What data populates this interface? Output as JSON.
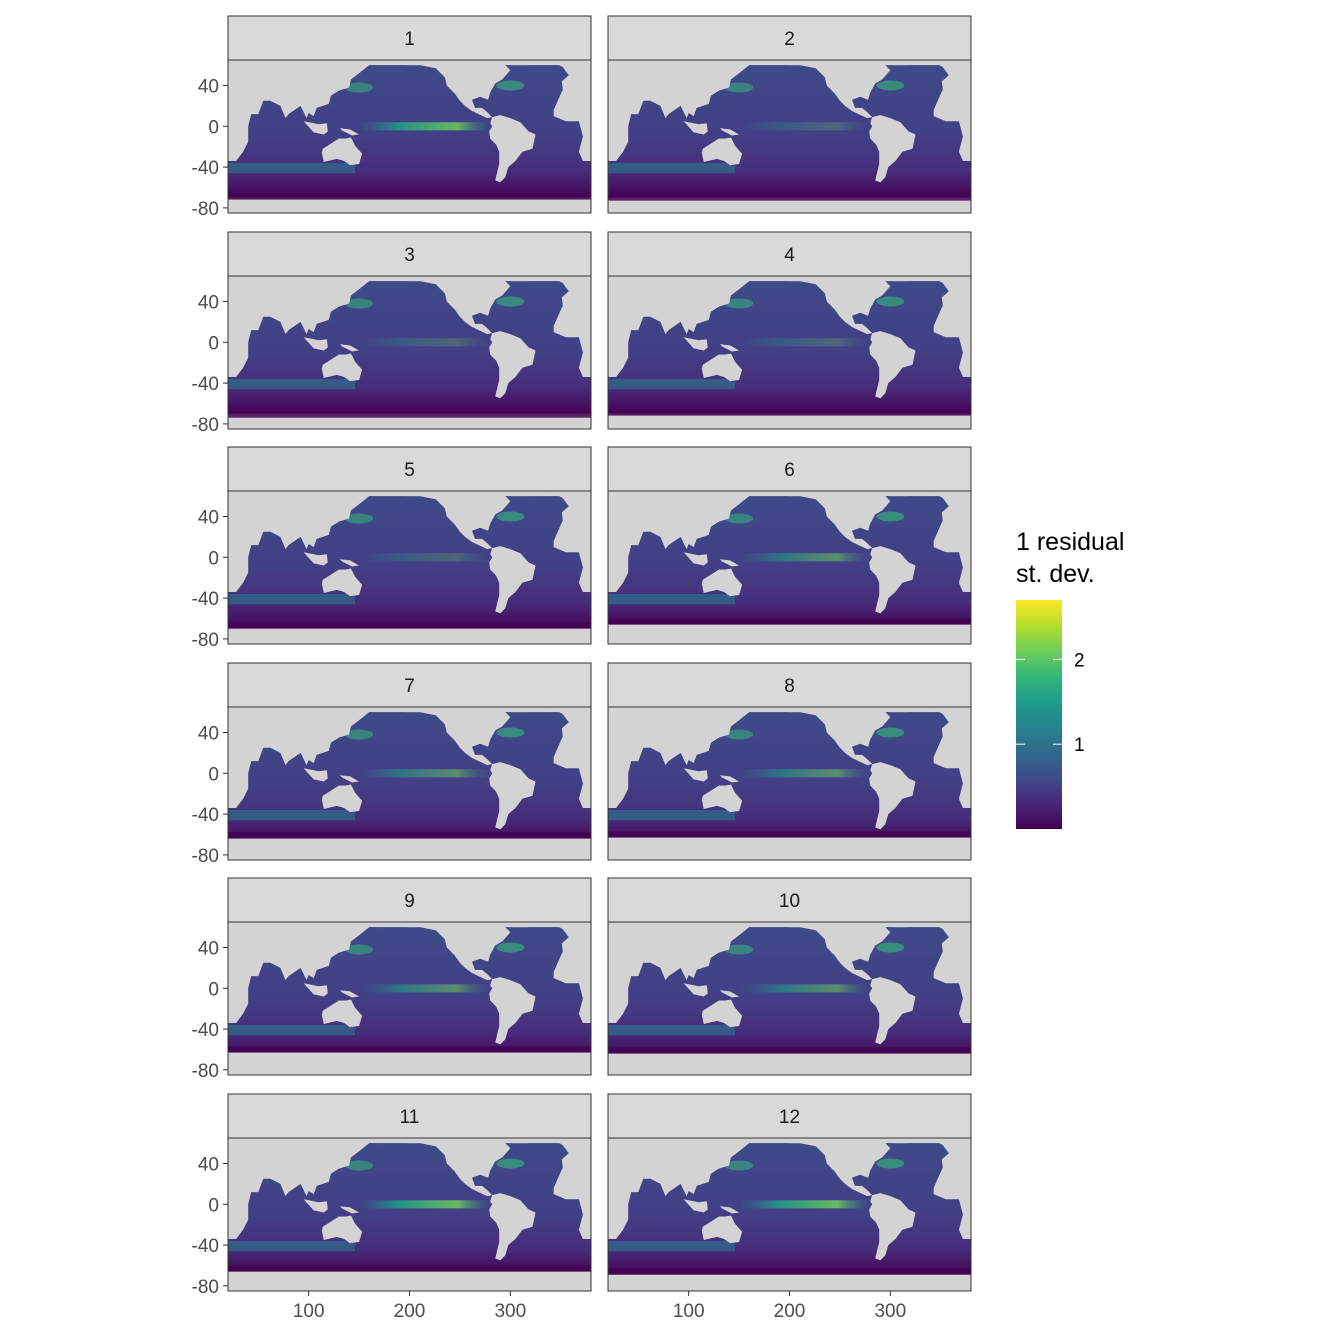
{
  "chart_data": {
    "type": "heatmap",
    "facet_variable": "month",
    "panels": [
      {
        "label": "1",
        "equatorial_band": "strong"
      },
      {
        "label": "2",
        "equatorial_band": "weak"
      },
      {
        "label": "3",
        "equatorial_band": "weak"
      },
      {
        "label": "4",
        "equatorial_band": "weak"
      },
      {
        "label": "5",
        "equatorial_band": "weak"
      },
      {
        "label": "6",
        "equatorial_band": "moderate"
      },
      {
        "label": "7",
        "equatorial_band": "moderate"
      },
      {
        "label": "8",
        "equatorial_band": "moderate"
      },
      {
        "label": "9",
        "equatorial_band": "moderate"
      },
      {
        "label": "10",
        "equatorial_band": "moderate"
      },
      {
        "label": "11",
        "equatorial_band": "strong"
      },
      {
        "label": "12",
        "equatorial_band": "strong"
      }
    ],
    "x_ticks": [
      "100",
      "200",
      "300"
    ],
    "x_tick_values": [
      100,
      200,
      300
    ],
    "xlim": [
      20,
      380
    ],
    "y_ticks": [
      "40",
      "0",
      "-40",
      "-80"
    ],
    "y_tick_values": [
      40,
      0,
      -40,
      -80
    ],
    "ylim": [
      -85,
      65
    ],
    "legend": {
      "title_lines": [
        "1 residual",
        "st. dev."
      ],
      "ticks": [
        "2",
        "1"
      ],
      "tick_values": [
        2,
        1
      ],
      "range": [
        0,
        2.7
      ],
      "placement": "right",
      "colors": [
        "#440154",
        "#482878",
        "#3e4a89",
        "#31688e",
        "#26828e",
        "#1f9e89",
        "#35b779",
        "#6ece58",
        "#b5de2b",
        "#fde725"
      ]
    },
    "land_color": "#d3d3d3",
    "strip_color": "#d9d9d9",
    "grid": false
  }
}
